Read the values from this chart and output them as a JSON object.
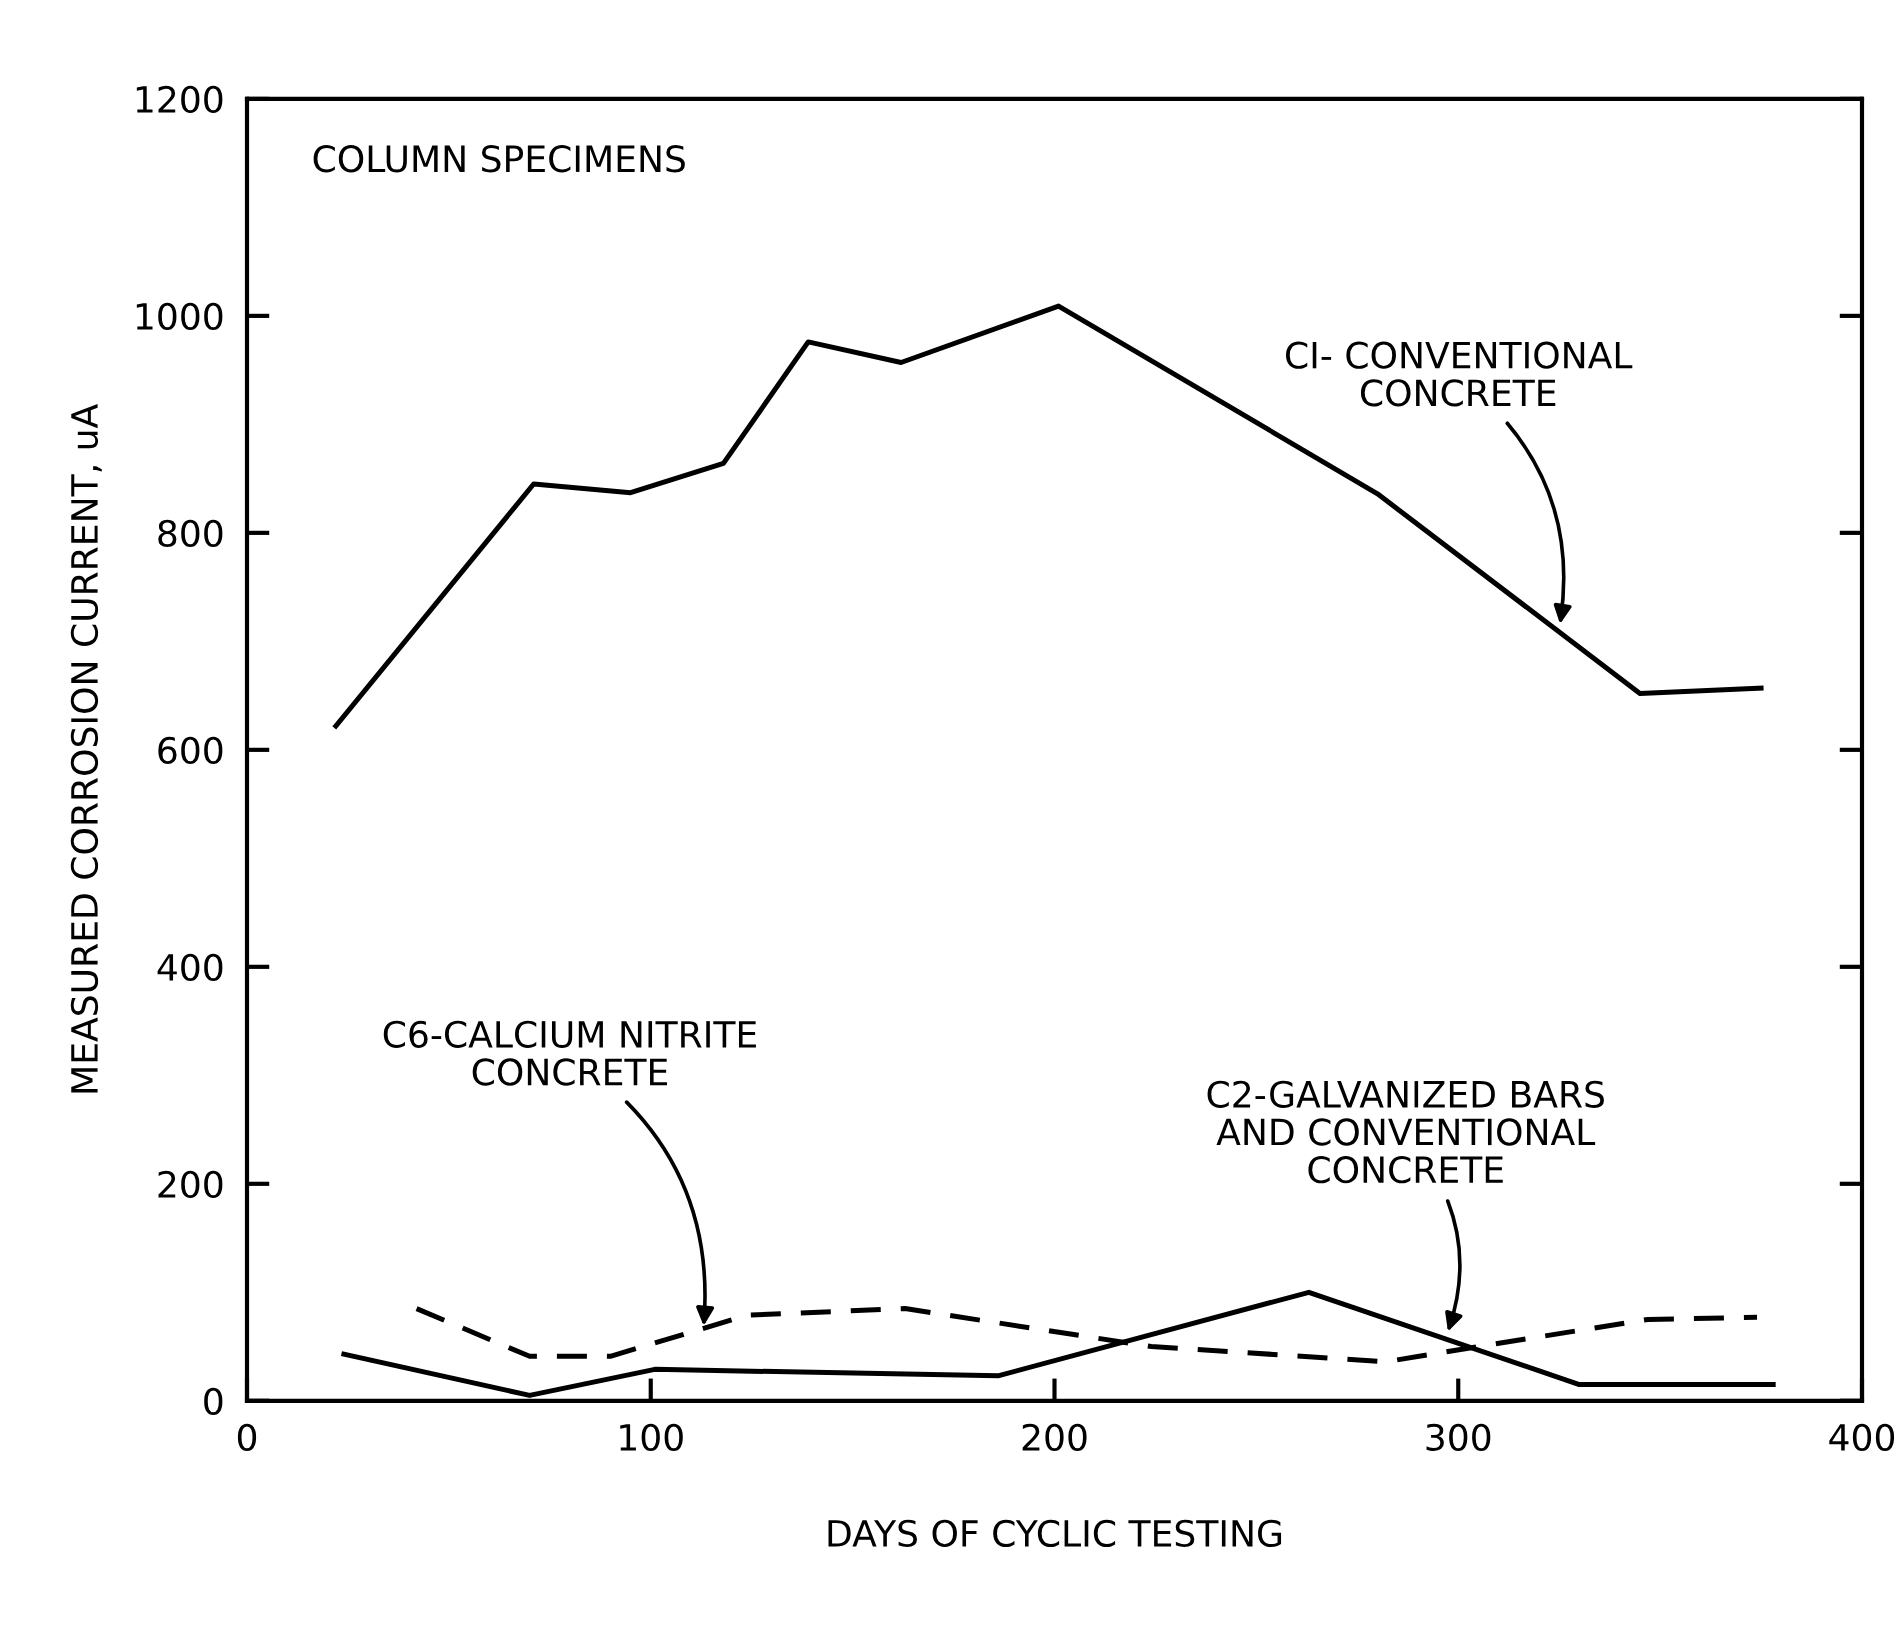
{
  "chart_data": {
    "type": "line",
    "title": "COLUMN SPECIMENS",
    "xlabel": "DAYS OF CYCLIC TESTING",
    "ylabel": "MEASURED CORROSION CURRENT, uA",
    "xlim": [
      0,
      400
    ],
    "xticks": [
      0,
      100,
      200,
      300,
      400
    ],
    "ylim": [
      0,
      1200
    ],
    "yticks": [
      0,
      200,
      400,
      600,
      800,
      1000,
      1200
    ],
    "grid": false,
    "legend": false,
    "marker": "none",
    "series": [
      {
        "color": "#000000",
        "line_style": "solid",
        "x": [
          22,
          71,
          95,
          118,
          139,
          162,
          201,
          280,
          345,
          375
        ],
        "values": [
          622,
          845,
          837,
          864,
          976,
          957,
          1009,
          836,
          652,
          657
        ]
      },
      {
        "color": "#000000",
        "line_style": "solid",
        "x": [
          24,
          70,
          101,
          186,
          263,
          330,
          378
        ],
        "values": [
          43,
          5,
          29,
          23,
          100,
          15,
          15
        ]
      },
      {
        "color": "#000000",
        "line_style": "dashed",
        "x": [
          42,
          70,
          90,
          124,
          163,
          224,
          282,
          305,
          347,
          374
        ],
        "values": [
          85,
          41,
          41,
          79,
          85,
          50,
          36,
          50,
          75,
          77
        ]
      }
    ],
    "annotations": [
      {
        "text": "CI- CONVENTIONAL\nCONCRETE",
        "x": 325,
        "y": 711
      },
      {
        "text": "C6-CALCIUM NITRITE\nCONCRETE",
        "x": 113,
        "y": 64
      },
      {
        "text": "C2-GALVANIZED BARS\nAND CONVENTIONAL\nCONCRETE",
        "x": 297,
        "y": 59
      }
    ]
  }
}
